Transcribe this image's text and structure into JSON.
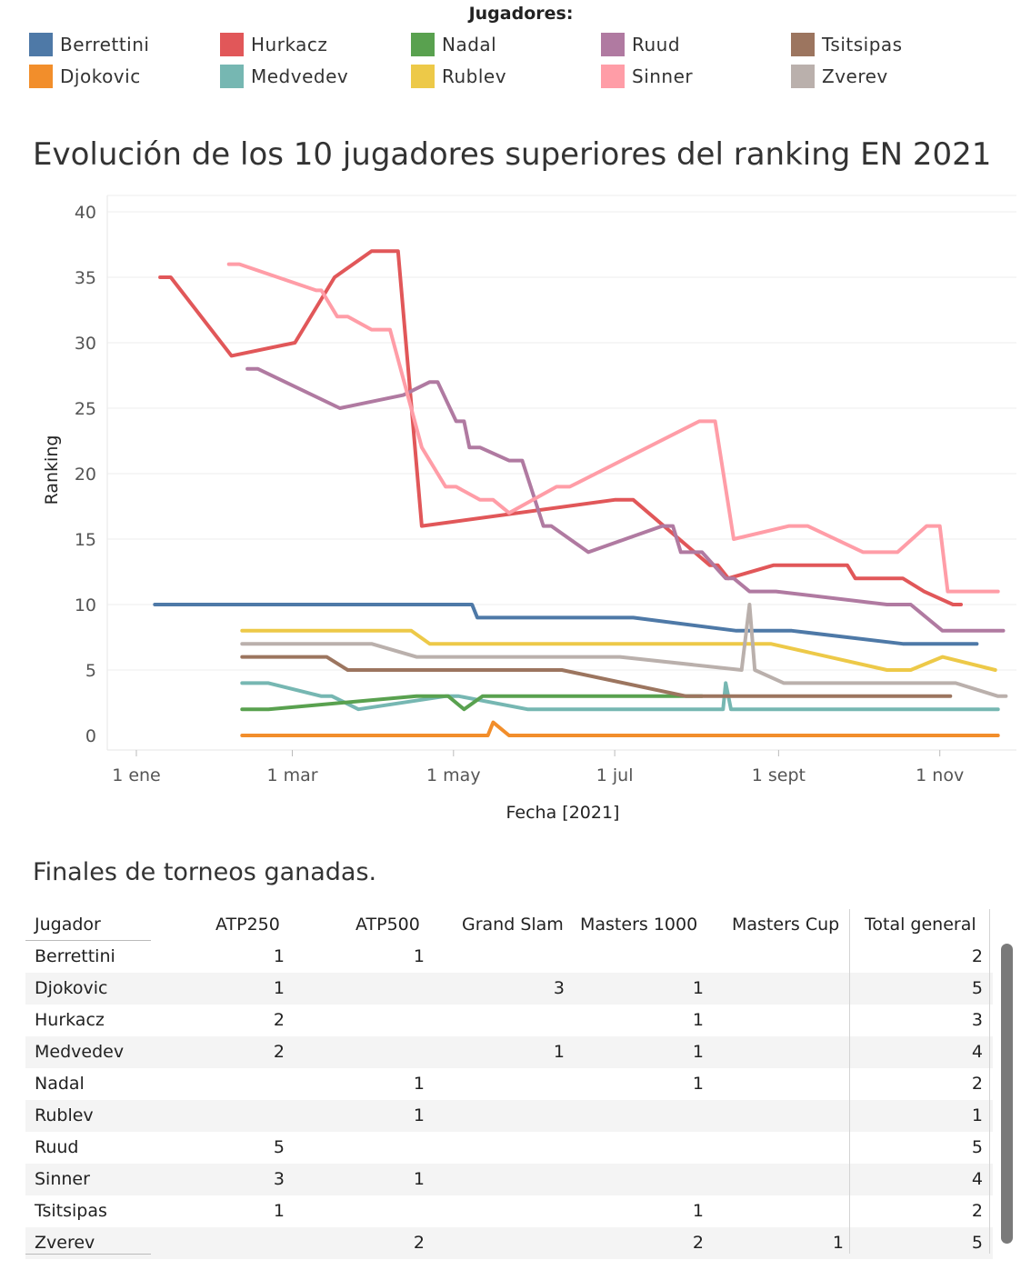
{
  "legend": {
    "title": "Jugadores:",
    "items": [
      {
        "name": "Berrettini",
        "color": "#4e79a7"
      },
      {
        "name": "Djokovic",
        "color": "#f28e2b"
      },
      {
        "name": "Hurkacz",
        "color": "#e15759"
      },
      {
        "name": "Medvedev",
        "color": "#76b7b2"
      },
      {
        "name": "Nadal",
        "color": "#59a14f"
      },
      {
        "name": "Rublev",
        "color": "#edc948"
      },
      {
        "name": "Ruud",
        "color": "#b07aa1"
      },
      {
        "name": "Sinner",
        "color": "#ff9da7"
      },
      {
        "name": "Tsitsipas",
        "color": "#9c755f"
      },
      {
        "name": "Zverev",
        "color": "#bab0ac"
      }
    ]
  },
  "chart_data": {
    "type": "line",
    "title": "Evolución de los 10 jugadores superiores del ranking EN 2021",
    "xlabel": "Fecha [2021]",
    "ylabel": "Ranking",
    "x_ticks": [
      {
        "label": "1 ene",
        "date": "2021-01-01"
      },
      {
        "label": "1 mar",
        "date": "2021-03-01"
      },
      {
        "label": "1 may",
        "date": "2021-05-01"
      },
      {
        "label": "1 jul",
        "date": "2021-07-01"
      },
      {
        "label": "1 sept",
        "date": "2021-09-01"
      },
      {
        "label": "1 nov",
        "date": "2021-11-01"
      }
    ],
    "y_ticks": [
      0,
      5,
      10,
      15,
      20,
      25,
      30,
      35,
      40
    ],
    "ylim": [
      0,
      40
    ],
    "xlim": [
      "2020-12-21",
      "2021-11-30"
    ],
    "grid": true,
    "series": [
      {
        "name": "Berrettini",
        "color": "#4e79a7",
        "points": [
          [
            "2021-01-08",
            10
          ],
          [
            "2021-05-08",
            10
          ],
          [
            "2021-05-10",
            9
          ],
          [
            "2021-07-08",
            9
          ],
          [
            "2021-08-16",
            8
          ],
          [
            "2021-09-06",
            8
          ],
          [
            "2021-10-18",
            7
          ],
          [
            "2021-11-15",
            7
          ]
        ]
      },
      {
        "name": "Djokovic",
        "color": "#f28e2b",
        "points": [
          [
            "2021-02-10",
            0
          ],
          [
            "2021-05-14",
            0
          ],
          [
            "2021-05-16",
            1
          ],
          [
            "2021-05-22",
            0
          ],
          [
            "2021-11-23",
            0
          ]
        ]
      },
      {
        "name": "Hurkacz",
        "color": "#e15759",
        "points": [
          [
            "2021-01-10",
            35
          ],
          [
            "2021-01-14",
            35
          ],
          [
            "2021-02-06",
            29
          ],
          [
            "2021-03-02",
            30
          ],
          [
            "2021-03-17",
            35
          ],
          [
            "2021-03-31",
            37
          ],
          [
            "2021-04-10",
            37
          ],
          [
            "2021-04-19",
            16
          ],
          [
            "2021-07-01",
            18
          ],
          [
            "2021-07-08",
            18
          ],
          [
            "2021-08-06",
            13
          ],
          [
            "2021-08-09",
            13
          ],
          [
            "2021-08-13",
            12
          ],
          [
            "2021-08-30",
            13
          ],
          [
            "2021-09-27",
            13
          ],
          [
            "2021-09-30",
            12
          ],
          [
            "2021-10-18",
            12
          ],
          [
            "2021-10-26",
            11
          ],
          [
            "2021-11-06",
            10
          ],
          [
            "2021-11-09",
            10
          ]
        ]
      },
      {
        "name": "Medvedev",
        "color": "#76b7b2",
        "points": [
          [
            "2021-02-10",
            4
          ],
          [
            "2021-02-20",
            4
          ],
          [
            "2021-03-12",
            3
          ],
          [
            "2021-03-16",
            3
          ],
          [
            "2021-03-26",
            2
          ],
          [
            "2021-04-28",
            3
          ],
          [
            "2021-05-03",
            3
          ],
          [
            "2021-05-29",
            2
          ],
          [
            "2021-08-11",
            2
          ],
          [
            "2021-08-12",
            4
          ],
          [
            "2021-08-14",
            2
          ],
          [
            "2021-11-23",
            2
          ]
        ]
      },
      {
        "name": "Nadal",
        "color": "#59a14f",
        "points": [
          [
            "2021-02-10",
            2
          ],
          [
            "2021-02-20",
            2
          ],
          [
            "2021-04-17",
            3
          ],
          [
            "2021-04-29",
            3
          ],
          [
            "2021-05-05",
            2
          ],
          [
            "2021-05-12",
            3
          ],
          [
            "2021-08-03",
            3
          ]
        ]
      },
      {
        "name": "Rublev",
        "color": "#edc948",
        "points": [
          [
            "2021-02-10",
            8
          ],
          [
            "2021-04-15",
            8
          ],
          [
            "2021-04-22",
            7
          ],
          [
            "2021-08-29",
            7
          ],
          [
            "2021-10-12",
            5
          ],
          [
            "2021-10-21",
            5
          ],
          [
            "2021-11-02",
            6
          ],
          [
            "2021-11-22",
            5
          ]
        ]
      },
      {
        "name": "Ruud",
        "color": "#b07aa1",
        "points": [
          [
            "2021-02-12",
            28
          ],
          [
            "2021-02-16",
            28
          ],
          [
            "2021-03-19",
            25
          ],
          [
            "2021-04-12",
            26
          ],
          [
            "2021-04-22",
            27
          ],
          [
            "2021-04-25",
            27
          ],
          [
            "2021-05-02",
            24
          ],
          [
            "2021-05-05",
            24
          ],
          [
            "2021-05-07",
            22
          ],
          [
            "2021-05-11",
            22
          ],
          [
            "2021-05-22",
            21
          ],
          [
            "2021-05-27",
            21
          ],
          [
            "2021-06-04",
            16
          ],
          [
            "2021-06-07",
            16
          ],
          [
            "2021-06-21",
            14
          ],
          [
            "2021-07-19",
            16
          ],
          [
            "2021-07-23",
            16
          ],
          [
            "2021-07-26",
            14
          ],
          [
            "2021-08-03",
            14
          ],
          [
            "2021-08-12",
            12
          ],
          [
            "2021-08-15",
            12
          ],
          [
            "2021-08-21",
            11
          ],
          [
            "2021-08-31",
            11
          ],
          [
            "2021-10-12",
            10
          ],
          [
            "2021-10-21",
            10
          ],
          [
            "2021-11-02",
            8
          ],
          [
            "2021-11-25",
            8
          ]
        ]
      },
      {
        "name": "Sinner",
        "color": "#ff9da7",
        "points": [
          [
            "2021-02-05",
            36
          ],
          [
            "2021-02-09",
            36
          ],
          [
            "2021-03-10",
            34
          ],
          [
            "2021-03-12",
            34
          ],
          [
            "2021-03-18",
            32
          ],
          [
            "2021-03-22",
            32
          ],
          [
            "2021-03-31",
            31
          ],
          [
            "2021-04-07",
            31
          ],
          [
            "2021-04-19",
            22
          ],
          [
            "2021-04-28",
            19
          ],
          [
            "2021-05-02",
            19
          ],
          [
            "2021-05-11",
            18
          ],
          [
            "2021-05-16",
            18
          ],
          [
            "2021-05-22",
            17
          ],
          [
            "2021-06-09",
            19
          ],
          [
            "2021-06-14",
            19
          ],
          [
            "2021-08-02",
            24
          ],
          [
            "2021-08-08",
            24
          ],
          [
            "2021-08-15",
            15
          ],
          [
            "2021-09-05",
            16
          ],
          [
            "2021-09-12",
            16
          ],
          [
            "2021-10-03",
            14
          ],
          [
            "2021-10-16",
            14
          ],
          [
            "2021-10-27",
            16
          ],
          [
            "2021-11-01",
            16
          ],
          [
            "2021-11-04",
            11
          ],
          [
            "2021-11-23",
            11
          ]
        ]
      },
      {
        "name": "Tsitsipas",
        "color": "#9c755f",
        "points": [
          [
            "2021-02-10",
            6
          ],
          [
            "2021-03-14",
            6
          ],
          [
            "2021-03-22",
            5
          ],
          [
            "2021-06-11",
            5
          ],
          [
            "2021-07-28",
            3
          ],
          [
            "2021-08-14",
            3
          ],
          [
            "2021-11-05",
            3
          ]
        ]
      },
      {
        "name": "Zverev",
        "color": "#bab0ac",
        "points": [
          [
            "2021-02-10",
            7
          ],
          [
            "2021-03-31",
            7
          ],
          [
            "2021-04-17",
            6
          ],
          [
            "2021-07-03",
            6
          ],
          [
            "2021-08-18",
            5
          ],
          [
            "2021-08-21",
            10
          ],
          [
            "2021-08-23",
            5
          ],
          [
            "2021-09-03",
            4
          ],
          [
            "2021-11-07",
            4
          ],
          [
            "2021-11-23",
            3
          ],
          [
            "2021-11-26",
            3
          ]
        ]
      }
    ]
  },
  "table": {
    "title": "Finales de torneos ganadas.",
    "columns": [
      "Jugador",
      "ATP250",
      "ATP500",
      "Grand Slam",
      "Masters 1000",
      "Masters Cup",
      "Total general"
    ],
    "rows": [
      [
        "Berrettini",
        "1",
        "1",
        "",
        "",
        "",
        "2"
      ],
      [
        "Djokovic",
        "1",
        "",
        "3",
        "1",
        "",
        "5"
      ],
      [
        "Hurkacz",
        "2",
        "",
        "",
        "1",
        "",
        "3"
      ],
      [
        "Medvedev",
        "2",
        "",
        "1",
        "1",
        "",
        "4"
      ],
      [
        "Nadal",
        "",
        "1",
        "",
        "1",
        "",
        "2"
      ],
      [
        "Rublev",
        "",
        "1",
        "",
        "",
        "",
        "1"
      ],
      [
        "Ruud",
        "5",
        "",
        "",
        "",
        "",
        "5"
      ],
      [
        "Sinner",
        "3",
        "1",
        "",
        "",
        "",
        "4"
      ],
      [
        "Tsitsipas",
        "1",
        "",
        "",
        "1",
        "",
        "2"
      ],
      [
        "Zverev",
        "",
        "2",
        "",
        "2",
        "1",
        "5"
      ]
    ]
  }
}
